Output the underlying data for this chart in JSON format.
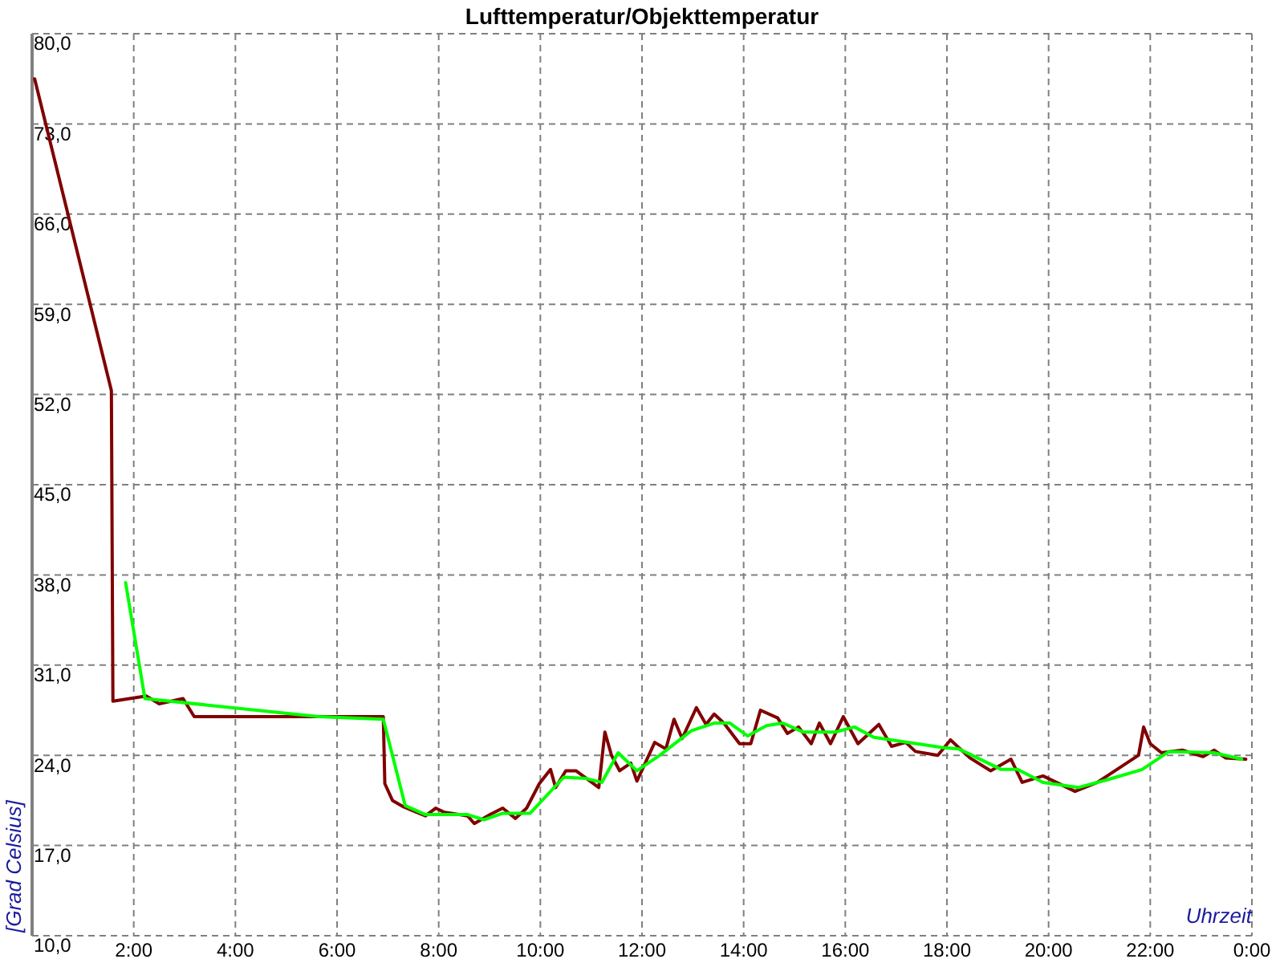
{
  "chart_data": {
    "type": "line",
    "title": "Lufttemperatur/Objekttemperatur",
    "xlabel": "Uhrzeit",
    "ylabel": "[Grad Celsius]",
    "xlim": [
      0,
      24
    ],
    "ylim": [
      10,
      80
    ],
    "xticks": [
      {
        "value": 0,
        "label": null
      },
      {
        "value": 2,
        "label": "2:00"
      },
      {
        "value": 4,
        "label": "4:00"
      },
      {
        "value": 6,
        "label": "6:00"
      },
      {
        "value": 8,
        "label": "8:00"
      },
      {
        "value": 10,
        "label": "10:00"
      },
      {
        "value": 12,
        "label": "12:00"
      },
      {
        "value": 14,
        "label": "14:00"
      },
      {
        "value": 16,
        "label": "16:00"
      },
      {
        "value": 18,
        "label": "18:00"
      },
      {
        "value": 20,
        "label": "20:00"
      },
      {
        "value": 22,
        "label": "22:00"
      },
      {
        "value": 24,
        "label": "0:00"
      }
    ],
    "yticks": [
      {
        "value": 10,
        "label": "10,0"
      },
      {
        "value": 17,
        "label": "17,0"
      },
      {
        "value": 24,
        "label": "24,0"
      },
      {
        "value": 31,
        "label": "31,0"
      },
      {
        "value": 38,
        "label": "38,0"
      },
      {
        "value": 45,
        "label": "45,0"
      },
      {
        "value": 52,
        "label": "52,0"
      },
      {
        "value": 59,
        "label": "59,0"
      },
      {
        "value": 66,
        "label": "66,0"
      },
      {
        "value": 73,
        "label": "73,0"
      },
      {
        "value": 80,
        "label": "80,0"
      }
    ],
    "grid": true,
    "marker": "none",
    "line_style": "solid",
    "series": [
      {
        "color": "#800000",
        "x": [
          0.05,
          1.56,
          1.59,
          2.25,
          2.5,
          2.97,
          3.19,
          6.91,
          6.94,
          7.09,
          7.31,
          7.74,
          7.94,
          8.1,
          8.57,
          8.7,
          9.01,
          9.26,
          9.51,
          9.73,
          9.98,
          10.2,
          10.3,
          10.5,
          10.7,
          11.15,
          11.27,
          11.4,
          11.56,
          11.78,
          11.9,
          12.25,
          12.47,
          12.63,
          12.79,
          13.07,
          13.26,
          13.42,
          13.61,
          13.92,
          14.14,
          14.33,
          14.67,
          14.86,
          15.08,
          15.33,
          15.49,
          15.71,
          15.96,
          16.25,
          16.66,
          16.91,
          17.19,
          17.38,
          17.82,
          18.07,
          18.45,
          18.86,
          19.26,
          19.48,
          19.89,
          20.52,
          20.96,
          21.77,
          21.87,
          22,
          22.22,
          22.63,
          23.04,
          23.26,
          23.48,
          23.88
        ],
        "values": [
          76.5,
          52.3,
          28.2,
          28.6,
          28,
          28.4,
          27,
          27,
          21.8,
          20.5,
          20,
          19.3,
          19.9,
          19.6,
          19.3,
          18.7,
          19.4,
          19.9,
          19.1,
          19.9,
          21.8,
          22.9,
          21.5,
          22.8,
          22.8,
          21.5,
          25.8,
          24,
          22.8,
          23.4,
          22,
          25,
          24.5,
          26.8,
          25.3,
          27.7,
          26.4,
          27.2,
          26.5,
          24.9,
          24.9,
          27.5,
          26.9,
          25.7,
          26.2,
          24.9,
          26.5,
          24.9,
          27,
          24.9,
          26.4,
          24.7,
          25,
          24.3,
          24,
          25.2,
          23.8,
          22.8,
          23.7,
          21.9,
          22.4,
          21.2,
          21.9,
          24,
          26.2,
          24.9,
          24.2,
          24.4,
          23.9,
          24.4,
          23.8,
          23.7
        ]
      },
      {
        "color": "#00ff00",
        "x": [
          1.84,
          2.22,
          5.64,
          6.91,
          7.34,
          7.74,
          8.57,
          8.89,
          9.26,
          9.8,
          10.46,
          10.9,
          11.21,
          11.53,
          11.9,
          12.35,
          12.97,
          13.42,
          13.73,
          14.08,
          14.45,
          14.77,
          15.18,
          15.8,
          16.18,
          16.56,
          17.91,
          18.23,
          19.07,
          19.39,
          19.89,
          20.58,
          21.15,
          21.84,
          22.37,
          23.25,
          23.8
        ],
        "values": [
          37.4,
          28.4,
          27,
          26.8,
          20.1,
          19.4,
          19.4,
          19,
          19.5,
          19.5,
          22.3,
          22.2,
          21.9,
          24.2,
          22.8,
          24,
          25.9,
          26.5,
          26.5,
          25.5,
          26.3,
          26.5,
          25.8,
          25.8,
          26.2,
          25.4,
          24.6,
          24.5,
          22.9,
          22.9,
          21.9,
          21.5,
          22.1,
          22.9,
          24.3,
          24.2,
          23.7
        ]
      }
    ]
  }
}
